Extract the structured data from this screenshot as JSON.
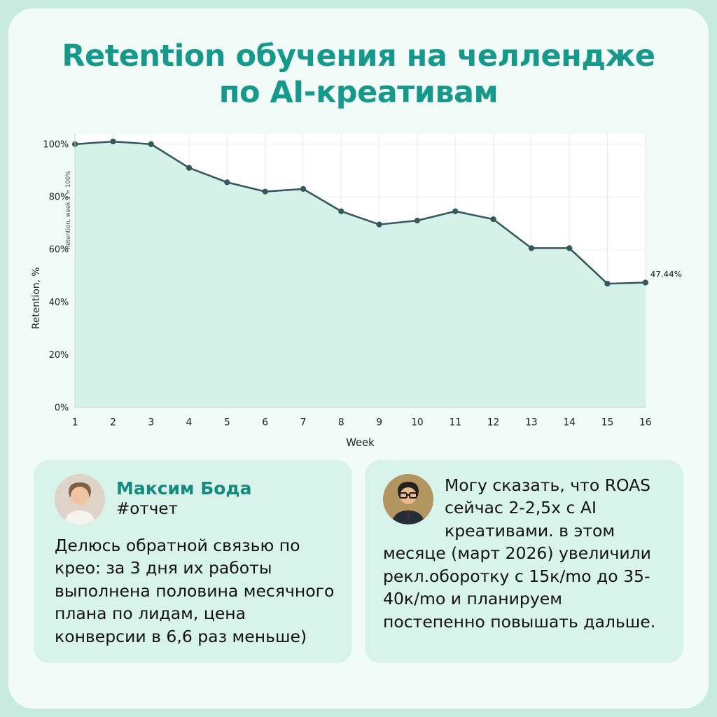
{
  "page": {
    "title_line1": "Retention обучения на челлендже",
    "title_line2": "по AI-креативам"
  },
  "chart_data": {
    "type": "line",
    "title": "Retention обучения на челлендже по AI-креативам",
    "x": [
      1,
      2,
      3,
      4,
      5,
      6,
      7,
      8,
      9,
      10,
      11,
      12,
      13,
      14,
      15,
      16
    ],
    "values": [
      100,
      101,
      100,
      91,
      85.5,
      82,
      83,
      74.5,
      69.5,
      71,
      74.5,
      71.5,
      60.5,
      60.5,
      47,
      47.44
    ],
    "xlabel": "Week",
    "ylabel": "Retention, %",
    "ylabel_secondary": "Retention, week 1 = 100%",
    "yticks": [
      "0%",
      "20%",
      "40%",
      "60%",
      "80%",
      "100%"
    ],
    "ytick_values": [
      0,
      20,
      40,
      60,
      80,
      100
    ],
    "ylim": [
      0,
      104
    ],
    "annotation_last_point": "47.44%",
    "line_color": "#34585c",
    "area_color": "#d5f2e9",
    "grid": true,
    "legend": "none"
  },
  "cards": {
    "left": {
      "name": "Максим Бода",
      "tag": "#отчет",
      "text": "Делюсь обратной связью по крео: за 3 дня их работы выполнена половина месячного плана по лидам, цена конверсии в 6,6 раз меньше)"
    },
    "right": {
      "text": "Могу сказать, что ROAS сейчас 2-2,5x с AI креативами. в этом месяце (март 2026) увеличили рекл.оборотку с 15к/mo до 35-40к/mo и планируем постепенно повышать дальше."
    }
  }
}
